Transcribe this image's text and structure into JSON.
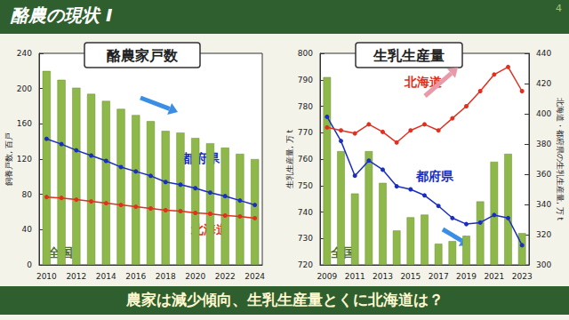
{
  "slide": {
    "title": "酪農の現状 I",
    "page": 4,
    "caption": "農家は減少傾向、生乳生産量とくに北海道は？"
  },
  "chart_data": [
    {
      "type": "bar",
      "title": "酪農家戸数",
      "categories": [
        "2010",
        null,
        "2012",
        null,
        "2014",
        null,
        "2016",
        null,
        "2018",
        null,
        "2020",
        null,
        "2022",
        null,
        "2024"
      ],
      "ylabel": "飼養戸数, 百戸",
      "ylim": [
        0,
        240
      ],
      "yticks": [
        0,
        40,
        80,
        120,
        160,
        200,
        240
      ],
      "grid": false,
      "series": [
        {
          "name": "全国",
          "type": "bar",
          "color": "#8fb84a",
          "values": [
            220,
            210,
            201,
            194,
            186,
            177,
            170,
            163,
            152,
            150,
            144,
            138,
            133,
            126,
            120
          ]
        },
        {
          "name": "都府県",
          "type": "line",
          "color": "#1a2fc0",
          "marker": "circle",
          "values": [
            143,
            137,
            130,
            124,
            118,
            111,
            106,
            101,
            94,
            91,
            87,
            82,
            78,
            73,
            68
          ]
        },
        {
          "name": "北海道",
          "type": "line",
          "color": "#e03020",
          "marker": "circle",
          "values": [
            77,
            76,
            74,
            72,
            70,
            68,
            66,
            64,
            62,
            61,
            59,
            58,
            56,
            55,
            53
          ]
        }
      ]
    },
    {
      "type": "bar",
      "title": "生乳生産量",
      "categories": [
        "2009",
        null,
        "2011",
        null,
        "2013",
        null,
        "2015",
        null,
        "2017",
        null,
        "2019",
        null,
        "2021",
        null,
        "2023"
      ],
      "ylabel": "生乳生産量, 万 t",
      "y2label": "北海道・都府県の生乳生産量, 万 t",
      "ylim": [
        720,
        800
      ],
      "yticks": [
        720,
        730,
        740,
        750,
        760,
        770,
        780,
        790,
        800
      ],
      "y2lim": [
        300,
        440
      ],
      "y2ticks": [
        300,
        320,
        340,
        360,
        380,
        400,
        420,
        440
      ],
      "grid": false,
      "series": [
        {
          "name": "全国",
          "type": "bar",
          "color": "#8fb84a",
          "values": [
            791,
            763,
            747,
            763,
            751,
            733,
            738,
            739,
            728,
            729,
            731,
            744,
            759,
            762,
            732
          ]
        },
        {
          "name": "都府県",
          "type": "line",
          "axis": "y2",
          "color": "#1a2fc0",
          "marker": "circle",
          "values": [
            398,
            382,
            359,
            369,
            363,
            352,
            350,
            346,
            339,
            331,
            327,
            328,
            333,
            331,
            313
          ]
        },
        {
          "name": "北海道",
          "type": "line",
          "axis": "y2",
          "color": "#e03020",
          "marker": "circle",
          "values": [
            391,
            389,
            387,
            393,
            388,
            381,
            389,
            393,
            389,
            397,
            405,
            415,
            426,
            431,
            415
          ]
        }
      ]
    }
  ]
}
